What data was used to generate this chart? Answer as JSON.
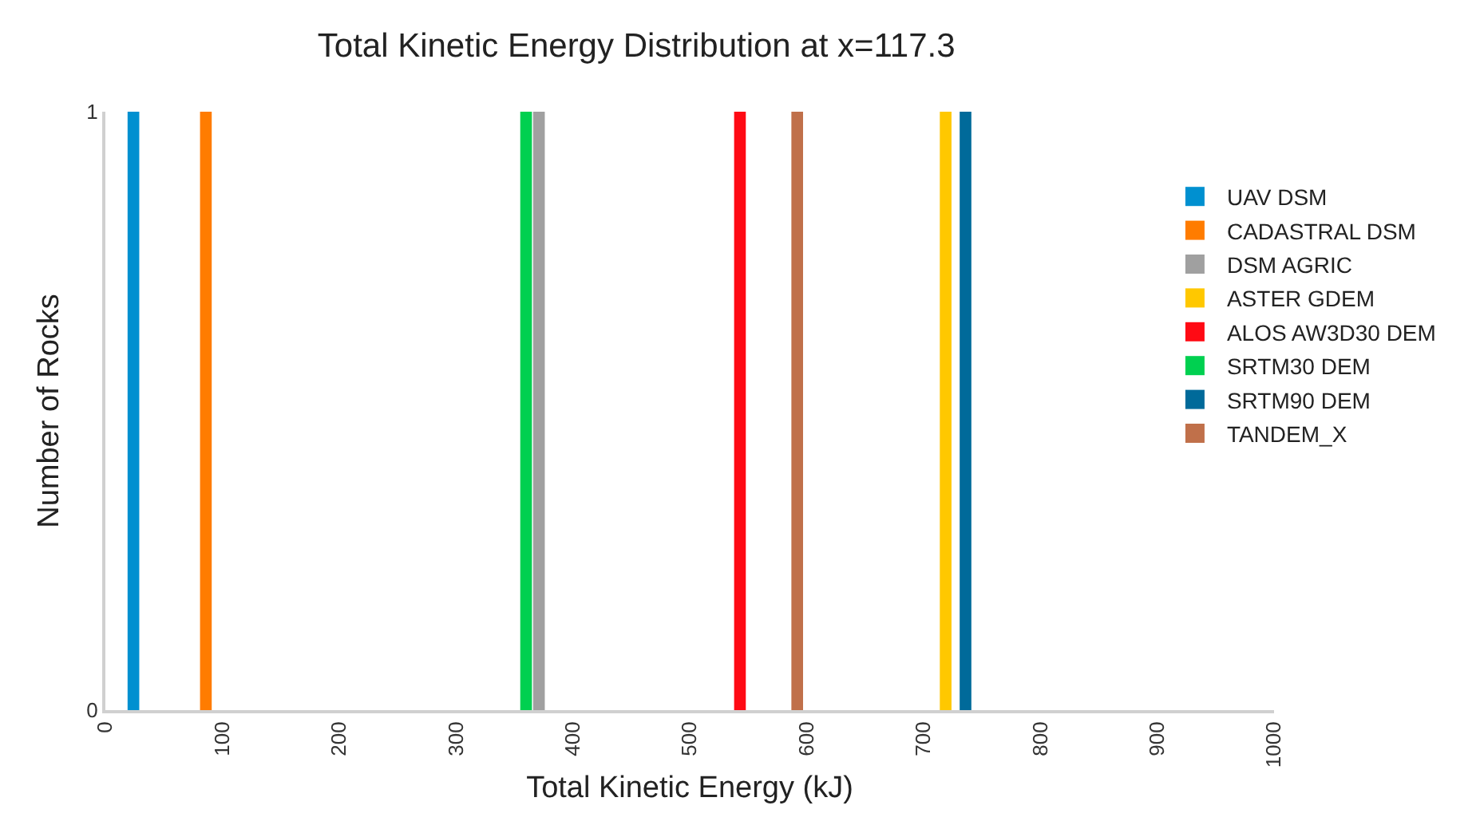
{
  "chart_data": {
    "type": "bar",
    "title": "Total Kinetic Energy Distribution at x=117.3",
    "xlabel": "Total Kinetic Energy (kJ)",
    "ylabel": "Number of Rocks",
    "series": [
      {
        "name": "UAV DSM",
        "color": "#0090d0",
        "x": [
          24
        ],
        "values": [
          1
        ]
      },
      {
        "name": "CADASTRAL DSM",
        "color": "#ff7c00",
        "x": [
          86
        ],
        "values": [
          1
        ]
      },
      {
        "name": "DSM AGRIC",
        "color": "#a0a0a0",
        "x": [
          371
        ],
        "values": [
          1
        ]
      },
      {
        "name": "ASTER GDEM",
        "color": "#ffc800",
        "x": [
          719
        ],
        "values": [
          1
        ]
      },
      {
        "name": "ALOS AW3D30 DEM",
        "color": "#ff0a14",
        "x": [
          543
        ],
        "values": [
          1
        ]
      },
      {
        "name": "SRTM30 DEM",
        "color": "#00d050",
        "x": [
          360
        ],
        "values": [
          1
        ]
      },
      {
        "name": "SRTM90 DEM",
        "color": "#006a9a",
        "x": [
          736
        ],
        "values": [
          1
        ]
      },
      {
        "name": "TANDEM_X",
        "color": "#c0704a",
        "x": [
          592
        ],
        "values": [
          1
        ]
      }
    ],
    "xlim": [
      0,
      1000
    ],
    "xticks": [
      0,
      100,
      200,
      300,
      400,
      500,
      600,
      700,
      800,
      900,
      1000
    ],
    "ylim": [
      0,
      1
    ],
    "yticks": [
      0,
      1
    ],
    "grid": false,
    "legend": "right"
  }
}
